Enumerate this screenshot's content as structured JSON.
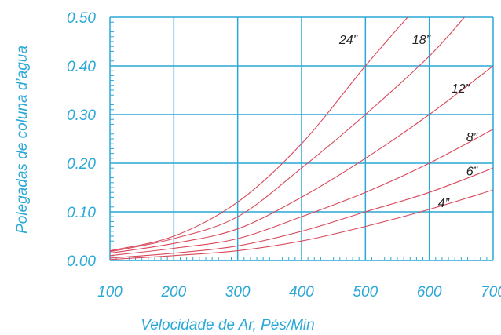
{
  "chart_data": {
    "type": "line",
    "title": "",
    "xlabel": "Velocidade de Ar, Pés/Min",
    "ylabel": "Polegadas de coluna d’agua",
    "xlim": [
      100,
      700
    ],
    "ylim": [
      0.0,
      0.5
    ],
    "x_ticks": [
      "100",
      "200",
      "300",
      "400",
      "500",
      "600",
      "700"
    ],
    "y_ticks": [
      "0.00",
      "0.10",
      "0.20",
      "0.30",
      "0.40",
      "0.50"
    ],
    "grid": true,
    "series": [
      {
        "name": "24”",
        "x": [
          100,
          200,
          300,
          400,
          500,
          566
        ],
        "y": [
          0.02,
          0.05,
          0.12,
          0.24,
          0.4,
          0.5
        ]
      },
      {
        "name": "18”",
        "x": [
          100,
          200,
          300,
          400,
          500,
          600,
          655
        ],
        "y": [
          0.018,
          0.045,
          0.09,
          0.19,
          0.3,
          0.42,
          0.5
        ]
      },
      {
        "name": "12”",
        "x": [
          100,
          200,
          300,
          400,
          500,
          600,
          700
        ],
        "y": [
          0.015,
          0.035,
          0.065,
          0.13,
          0.21,
          0.3,
          0.4
        ]
      },
      {
        "name": "8”",
        "x": [
          100,
          200,
          300,
          400,
          500,
          600,
          700
        ],
        "y": [
          0.01,
          0.025,
          0.045,
          0.09,
          0.14,
          0.2,
          0.27
        ]
      },
      {
        "name": "6”",
        "x": [
          100,
          200,
          300,
          400,
          500,
          600,
          700
        ],
        "y": [
          0.005,
          0.015,
          0.03,
          0.06,
          0.1,
          0.14,
          0.19
        ]
      },
      {
        "name": "4”",
        "x": [
          100,
          200,
          300,
          400,
          500,
          600,
          700
        ],
        "y": [
          0.002,
          0.01,
          0.02,
          0.04,
          0.07,
          0.105,
          0.145
        ]
      }
    ],
    "colors": {
      "grid": "#2aa8d6",
      "curve": "#d9485a",
      "label": "#222222"
    }
  }
}
